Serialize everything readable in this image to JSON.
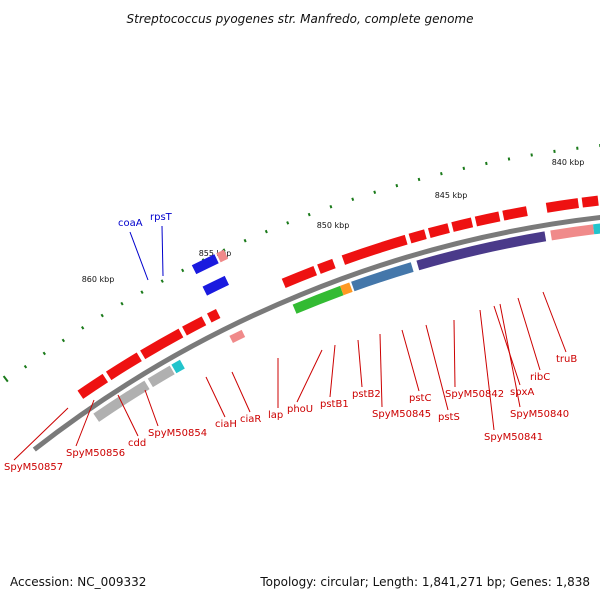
{
  "title": "Streptococcus pyogenes str. Manfredo, complete genome",
  "footer": {
    "accession": "Accession: NC_009332",
    "summary": "Topology: circular; Length: 1,841,271 bp; Genes: 1,838"
  },
  "colors": {
    "backbone": "#7a7a7a",
    "tick": "#1a7a1a",
    "label_red": "#cc0000",
    "label_blue": "#0000cc",
    "cds_red": "#ee1111",
    "pink": "#f08a8a",
    "gray": "#b0b0b0",
    "dark_gray": "#6a6a6a",
    "blue": "#1a1adf",
    "purple": "#4a3a8a",
    "steel": "#4477aa",
    "green": "#33bb33",
    "orange": "#ff9922",
    "cyan": "#22c4cc"
  },
  "kbp_labels": [
    "840 kbp",
    "845 kbp",
    "850 kbp",
    "855 kbp",
    "860 kbp"
  ],
  "genes": [
    {
      "name": "truB",
      "color": "label_red"
    },
    {
      "name": "ribC",
      "color": "label_red"
    },
    {
      "name": "SpyM50840",
      "color": "label_red"
    },
    {
      "name": "spxA",
      "color": "label_red"
    },
    {
      "name": "SpyM50841",
      "color": "label_red"
    },
    {
      "name": "SpyM50842",
      "color": "label_red"
    },
    {
      "name": "pstS",
      "color": "label_red"
    },
    {
      "name": "pstC",
      "color": "label_red"
    },
    {
      "name": "SpyM50845",
      "color": "label_red"
    },
    {
      "name": "pstB2",
      "color": "label_red"
    },
    {
      "name": "pstB1",
      "color": "label_red"
    },
    {
      "name": "phoU",
      "color": "label_red"
    },
    {
      "name": "lap",
      "color": "label_red"
    },
    {
      "name": "ciaR",
      "color": "label_red"
    },
    {
      "name": "ciaH",
      "color": "label_red"
    },
    {
      "name": "SpyM50854",
      "color": "label_red"
    },
    {
      "name": "cdd",
      "color": "label_red"
    },
    {
      "name": "SpyM50856",
      "color": "label_red"
    },
    {
      "name": "SpyM50857",
      "color": "label_red"
    },
    {
      "name": "coaA",
      "color": "label_blue"
    },
    {
      "name": "rpsT",
      "color": "label_blue"
    }
  ]
}
